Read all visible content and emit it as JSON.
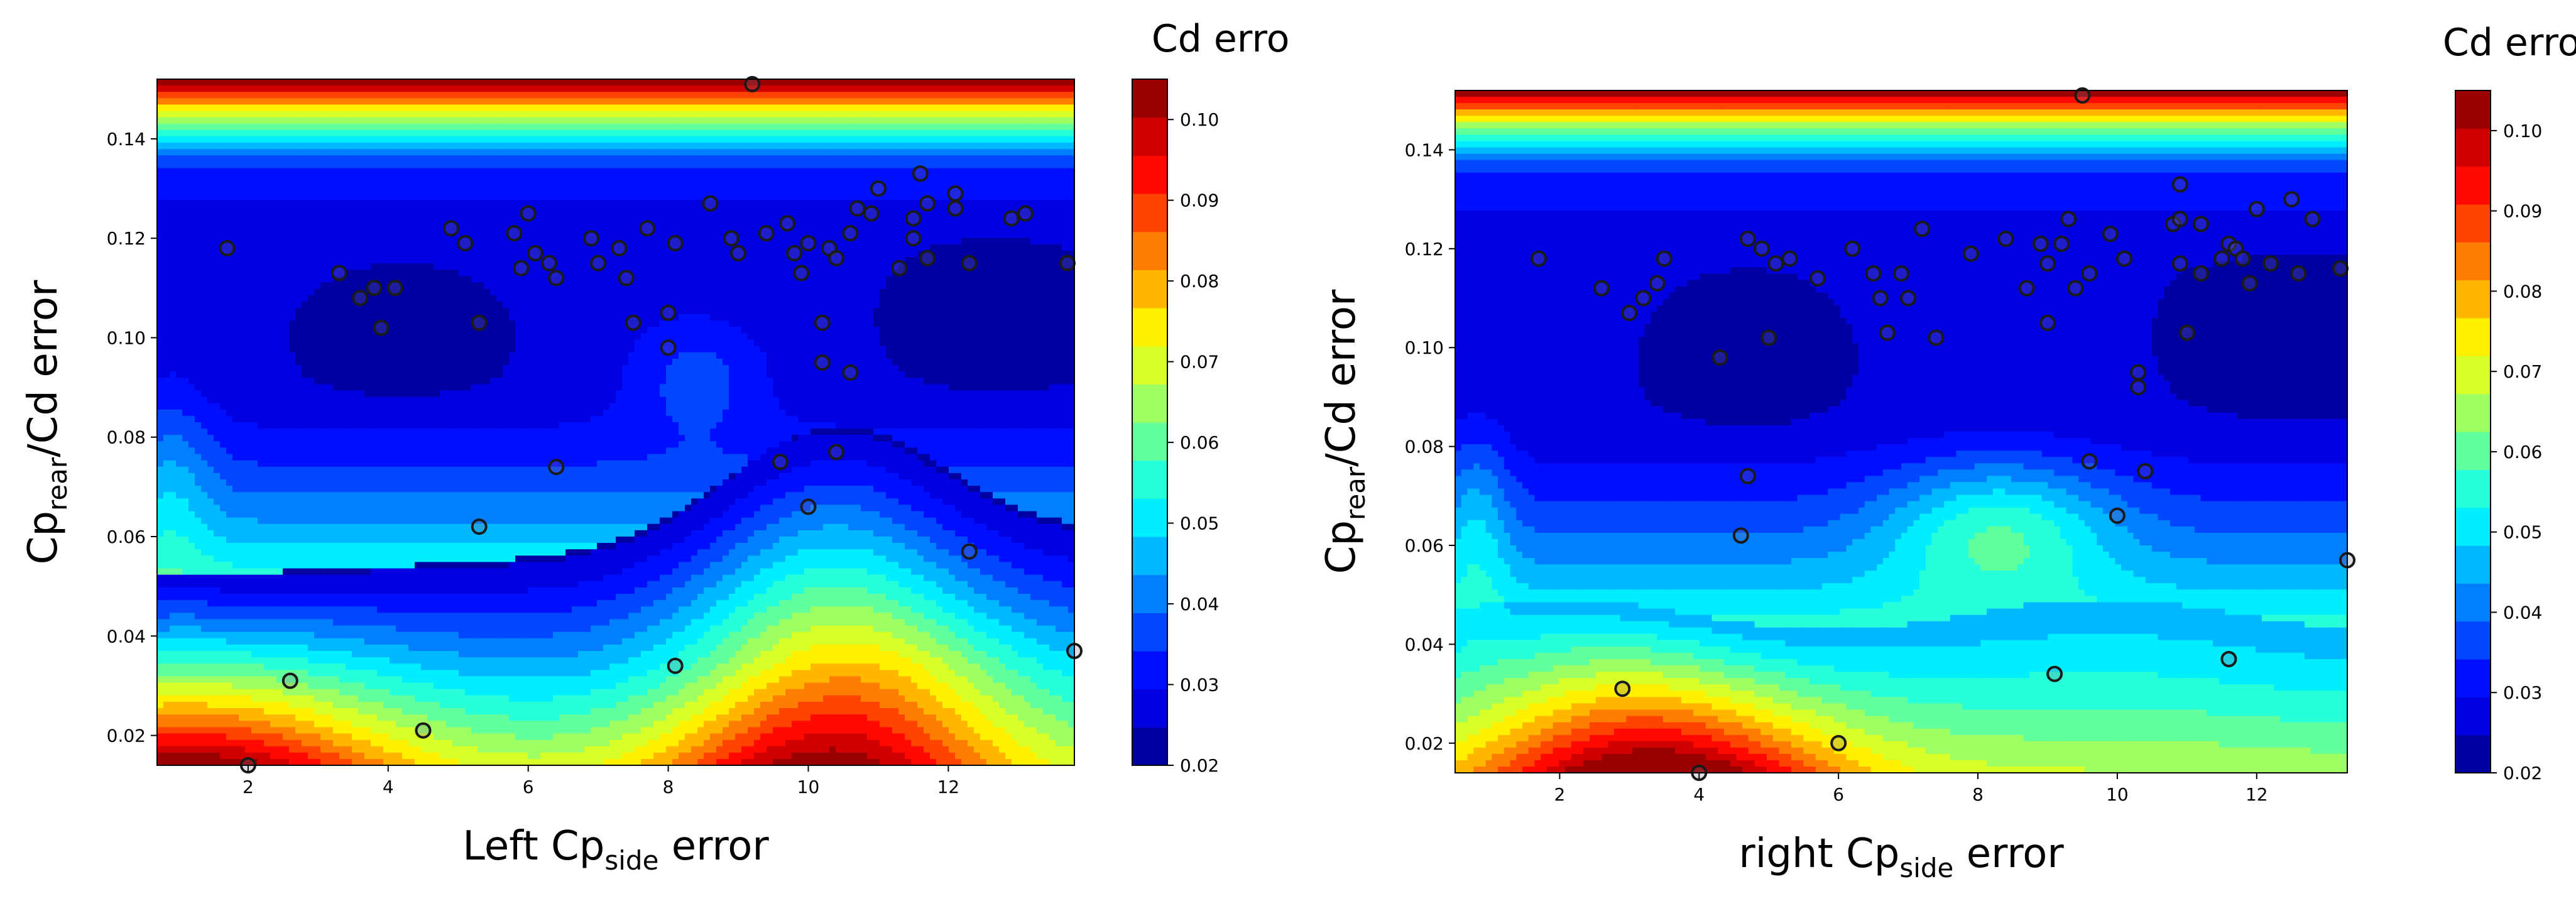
{
  "chart_data": [
    {
      "type": "heatmap",
      "subtype": "filled-contour-with-scatter",
      "title": "",
      "xlabel_main": "Left Cp",
      "xlabel_sub": "side",
      "xlabel_tail": " error",
      "ylabel_main": "Cp",
      "ylabel_sub": "rear",
      "ylabel_tail": "/Cd error",
      "xlim": [
        0.7,
        13.8
      ],
      "ylim": [
        0.014,
        0.152
      ],
      "xticks": [
        2,
        4,
        6,
        8,
        10,
        12
      ],
      "yticks": [
        0.02,
        0.04,
        0.06,
        0.08,
        0.1,
        0.12,
        0.14
      ],
      "ytick_labels": [
        "0.02",
        "0.04",
        "0.06",
        "0.08",
        "0.10",
        "0.12",
        "0.14"
      ],
      "colorbar": {
        "label": "Cd error",
        "range": [
          0.02,
          0.105
        ],
        "ticks": [
          0.02,
          0.03,
          0.04,
          0.05,
          0.06,
          0.07,
          0.08,
          0.09,
          0.1
        ],
        "tick_labels": [
          "0.02",
          "0.03",
          "0.04",
          "0.05",
          "0.06",
          "0.07",
          "0.08",
          "0.09",
          "0.10"
        ]
      },
      "scatter": [
        [
          1.7,
          0.118
        ],
        [
          2.0,
          0.014
        ],
        [
          2.6,
          0.031
        ],
        [
          3.3,
          0.113
        ],
        [
          3.6,
          0.108
        ],
        [
          3.8,
          0.11
        ],
        [
          3.9,
          0.102
        ],
        [
          4.1,
          0.11
        ],
        [
          4.5,
          0.021
        ],
        [
          4.9,
          0.122
        ],
        [
          5.1,
          0.119
        ],
        [
          5.3,
          0.103
        ],
        [
          5.3,
          0.062
        ],
        [
          5.8,
          0.121
        ],
        [
          5.9,
          0.114
        ],
        [
          6.0,
          0.125
        ],
        [
          6.1,
          0.117
        ],
        [
          6.3,
          0.115
        ],
        [
          6.4,
          0.112
        ],
        [
          6.4,
          0.074
        ],
        [
          6.9,
          0.12
        ],
        [
          7.0,
          0.115
        ],
        [
          7.3,
          0.118
        ],
        [
          7.4,
          0.112
        ],
        [
          7.5,
          0.103
        ],
        [
          7.7,
          0.122
        ],
        [
          8.0,
          0.105
        ],
        [
          8.0,
          0.098
        ],
        [
          8.1,
          0.119
        ],
        [
          8.1,
          0.034
        ],
        [
          8.6,
          0.127
        ],
        [
          8.9,
          0.12
        ],
        [
          9.0,
          0.117
        ],
        [
          9.2,
          0.151
        ],
        [
          9.4,
          0.121
        ],
        [
          9.6,
          0.075
        ],
        [
          9.7,
          0.123
        ],
        [
          9.8,
          0.117
        ],
        [
          9.9,
          0.113
        ],
        [
          10.0,
          0.119
        ],
        [
          10.0,
          0.066
        ],
        [
          10.2,
          0.103
        ],
        [
          10.2,
          0.095
        ],
        [
          10.3,
          0.118
        ],
        [
          10.4,
          0.077
        ],
        [
          10.4,
          0.116
        ],
        [
          10.6,
          0.093
        ],
        [
          10.6,
          0.121
        ],
        [
          10.7,
          0.126
        ],
        [
          10.9,
          0.125
        ],
        [
          11.0,
          0.13
        ],
        [
          11.3,
          0.114
        ],
        [
          11.5,
          0.12
        ],
        [
          11.5,
          0.124
        ],
        [
          11.6,
          0.133
        ],
        [
          11.7,
          0.127
        ],
        [
          11.7,
          0.116
        ],
        [
          12.1,
          0.129
        ],
        [
          12.1,
          0.126
        ],
        [
          12.3,
          0.115
        ],
        [
          12.3,
          0.057
        ],
        [
          12.9,
          0.124
        ],
        [
          13.1,
          0.125
        ],
        [
          13.7,
          0.115
        ],
        [
          13.8,
          0.037
        ]
      ]
    },
    {
      "type": "heatmap",
      "subtype": "filled-contour-with-scatter",
      "title": "",
      "xlabel_main": "right Cp",
      "xlabel_sub": "side",
      "xlabel_tail": " error",
      "ylabel_main": "Cp",
      "ylabel_sub": "rear",
      "ylabel_tail": "/Cd error",
      "xlim": [
        0.5,
        13.3
      ],
      "ylim": [
        0.014,
        0.152
      ],
      "xticks": [
        2,
        4,
        6,
        8,
        10,
        12
      ],
      "yticks": [
        0.02,
        0.04,
        0.06,
        0.08,
        0.1,
        0.12,
        0.14
      ],
      "ytick_labels": [
        "0.02",
        "0.04",
        "0.06",
        "0.08",
        "0.10",
        "0.12",
        "0.14"
      ],
      "colorbar": {
        "label": "Cd error",
        "range": [
          0.02,
          0.105
        ],
        "ticks": [
          0.02,
          0.03,
          0.04,
          0.05,
          0.06,
          0.07,
          0.08,
          0.09,
          0.1
        ],
        "tick_labels": [
          "0.02",
          "0.03",
          "0.04",
          "0.05",
          "0.06",
          "0.07",
          "0.08",
          "0.09",
          "0.10"
        ]
      },
      "scatter": [
        [
          1.7,
          0.118
        ],
        [
          2.6,
          0.112
        ],
        [
          2.9,
          0.031
        ],
        [
          3.0,
          0.107
        ],
        [
          3.2,
          0.11
        ],
        [
          3.4,
          0.113
        ],
        [
          3.5,
          0.118
        ],
        [
          4.0,
          0.014
        ],
        [
          4.3,
          0.098
        ],
        [
          4.6,
          0.062
        ],
        [
          4.7,
          0.074
        ],
        [
          4.7,
          0.122
        ],
        [
          4.9,
          0.12
        ],
        [
          5.0,
          0.102
        ],
        [
          5.1,
          0.117
        ],
        [
          5.3,
          0.118
        ],
        [
          5.7,
          0.114
        ],
        [
          6.0,
          0.02
        ],
        [
          6.2,
          0.12
        ],
        [
          6.5,
          0.115
        ],
        [
          6.6,
          0.11
        ],
        [
          6.7,
          0.103
        ],
        [
          6.9,
          0.115
        ],
        [
          7.0,
          0.11
        ],
        [
          7.2,
          0.124
        ],
        [
          7.4,
          0.102
        ],
        [
          7.9,
          0.119
        ],
        [
          8.4,
          0.122
        ],
        [
          8.7,
          0.112
        ],
        [
          8.9,
          0.121
        ],
        [
          9.0,
          0.117
        ],
        [
          9.0,
          0.105
        ],
        [
          9.1,
          0.034
        ],
        [
          9.2,
          0.121
        ],
        [
          9.3,
          0.126
        ],
        [
          9.4,
          0.112
        ],
        [
          9.5,
          0.151
        ],
        [
          9.6,
          0.115
        ],
        [
          9.6,
          0.077
        ],
        [
          9.9,
          0.123
        ],
        [
          10.0,
          0.066
        ],
        [
          10.1,
          0.118
        ],
        [
          10.3,
          0.095
        ],
        [
          10.3,
          0.092
        ],
        [
          10.4,
          0.075
        ],
        [
          10.8,
          0.125
        ],
        [
          10.9,
          0.126
        ],
        [
          10.9,
          0.133
        ],
        [
          10.9,
          0.117
        ],
        [
          11.0,
          0.103
        ],
        [
          11.2,
          0.125
        ],
        [
          11.2,
          0.115
        ],
        [
          11.5,
          0.118
        ],
        [
          11.6,
          0.121
        ],
        [
          11.6,
          0.037
        ],
        [
          11.7,
          0.12
        ],
        [
          11.8,
          0.118
        ],
        [
          11.9,
          0.113
        ],
        [
          12.0,
          0.128
        ],
        [
          12.2,
          0.117
        ],
        [
          12.5,
          0.13
        ],
        [
          12.6,
          0.115
        ],
        [
          12.8,
          0.126
        ],
        [
          13.2,
          0.116
        ],
        [
          13.3,
          0.057
        ]
      ]
    }
  ]
}
